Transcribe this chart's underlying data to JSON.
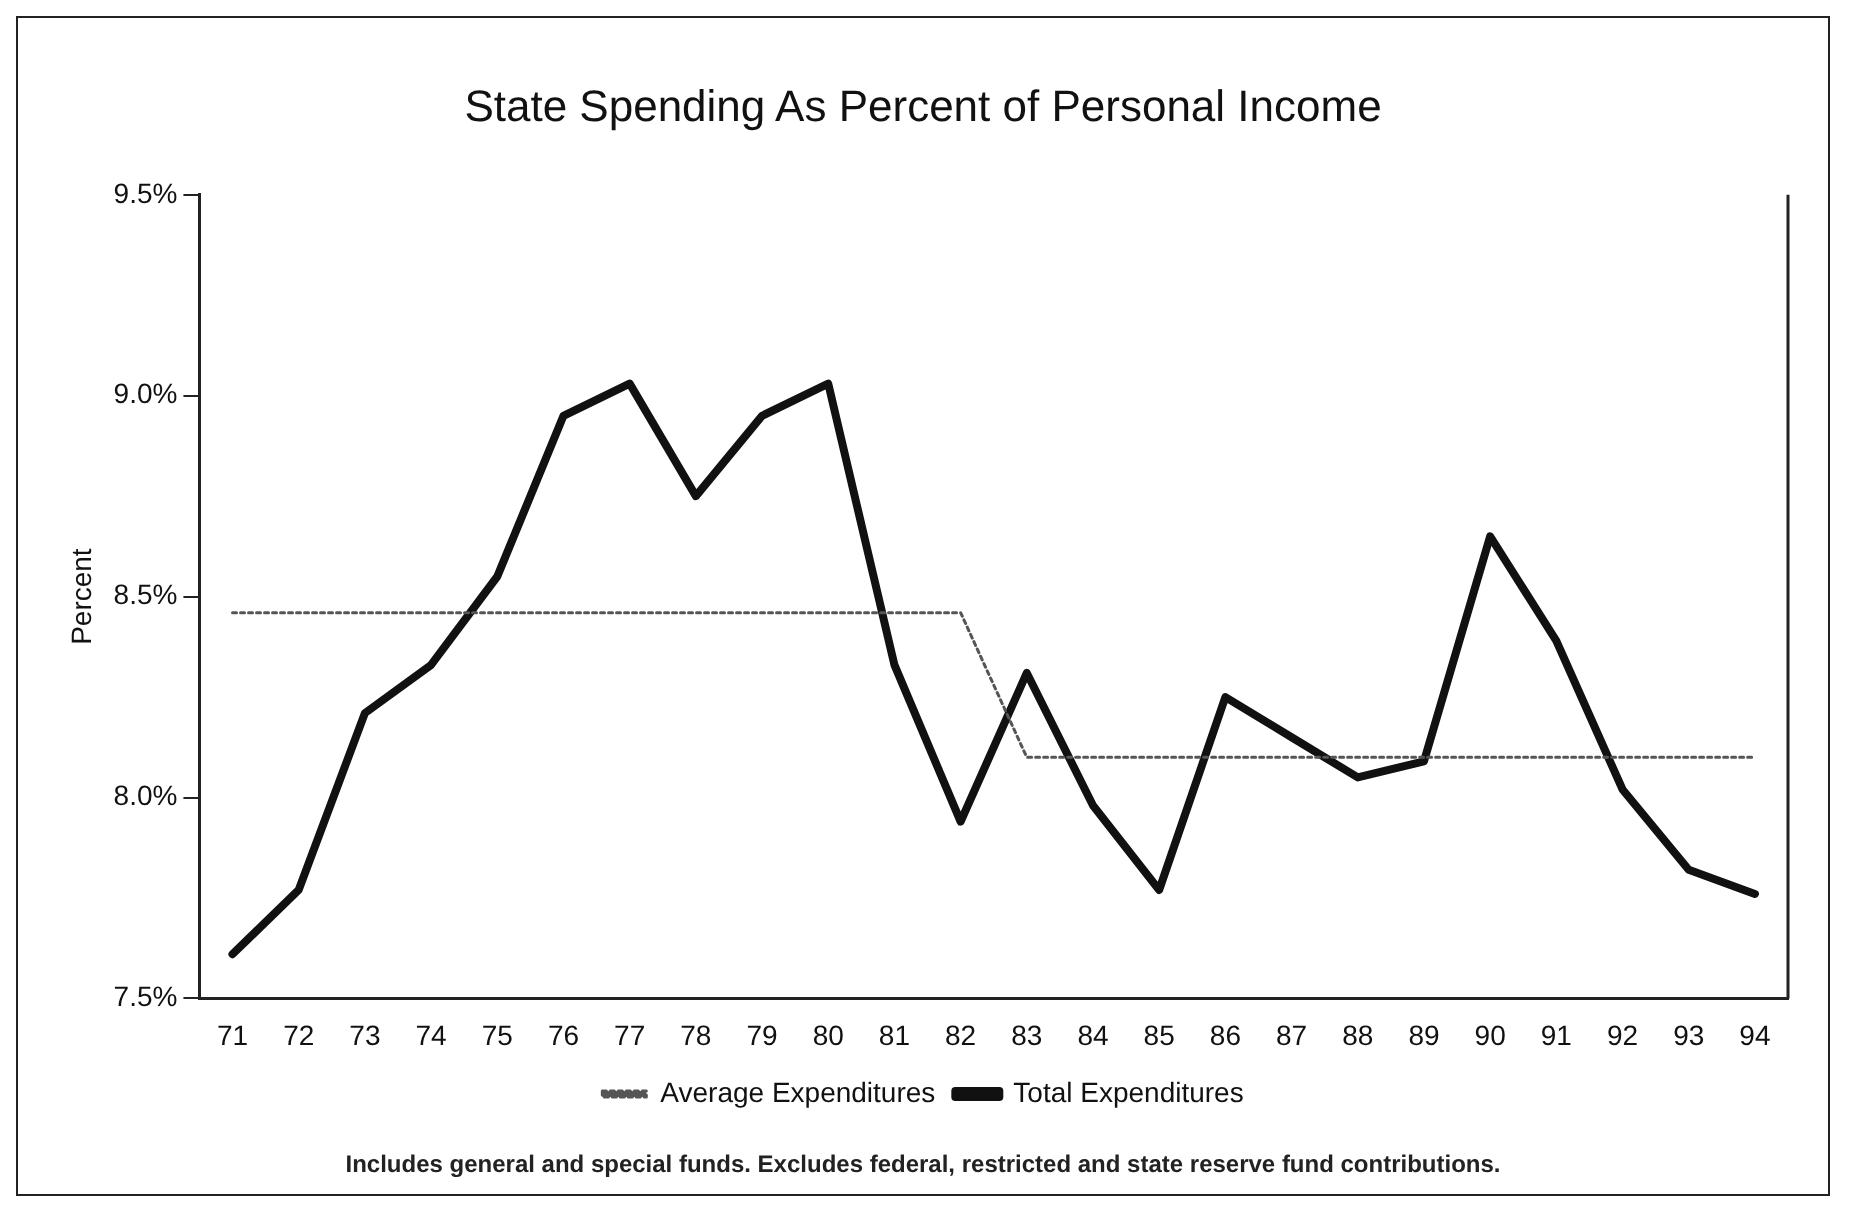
{
  "chart_data": {
    "type": "line",
    "title": "State Spending As Percent of Personal Income",
    "ylabel": "Percent",
    "categories": [
      "71",
      "72",
      "73",
      "74",
      "75",
      "76",
      "77",
      "78",
      "79",
      "80",
      "81",
      "82",
      "83",
      "84",
      "85",
      "86",
      "87",
      "88",
      "89",
      "90",
      "91",
      "92",
      "93",
      "94"
    ],
    "series": [
      {
        "name": "Average Expenditures",
        "color": "#555555",
        "line_style": "dotted",
        "values": [
          8.46,
          8.46,
          8.46,
          8.46,
          8.46,
          8.46,
          8.46,
          8.46,
          8.46,
          8.46,
          8.46,
          8.46,
          8.1,
          8.1,
          8.1,
          8.1,
          8.1,
          8.1,
          8.1,
          8.1,
          8.1,
          8.1,
          8.1,
          8.1
        ]
      },
      {
        "name": "Total Expenditures",
        "color": "#111111",
        "line_style": "solid",
        "values": [
          7.61,
          7.77,
          8.21,
          8.33,
          8.55,
          8.95,
          9.03,
          8.75,
          8.95,
          9.03,
          8.33,
          7.94,
          8.31,
          7.98,
          7.77,
          8.25,
          8.15,
          8.05,
          8.09,
          8.65,
          8.39,
          8.02,
          7.82,
          7.76
        ]
      }
    ],
    "ylim": [
      7.5,
      9.5
    ],
    "yticks": [
      {
        "value": 7.5,
        "label": "7.5%"
      },
      {
        "value": 8,
        "label": "8.0%"
      },
      {
        "value": 8.5,
        "label": "8.5%"
      },
      {
        "value": 9,
        "label": "9.0%"
      },
      {
        "value": 9.5,
        "label": "9.5%"
      }
    ],
    "grid": false,
    "legend": "bottom",
    "marker": "none",
    "annotations": [
      "Includes general and special funds. Excludes federal, restricted and state reserve fund contributions."
    ]
  }
}
